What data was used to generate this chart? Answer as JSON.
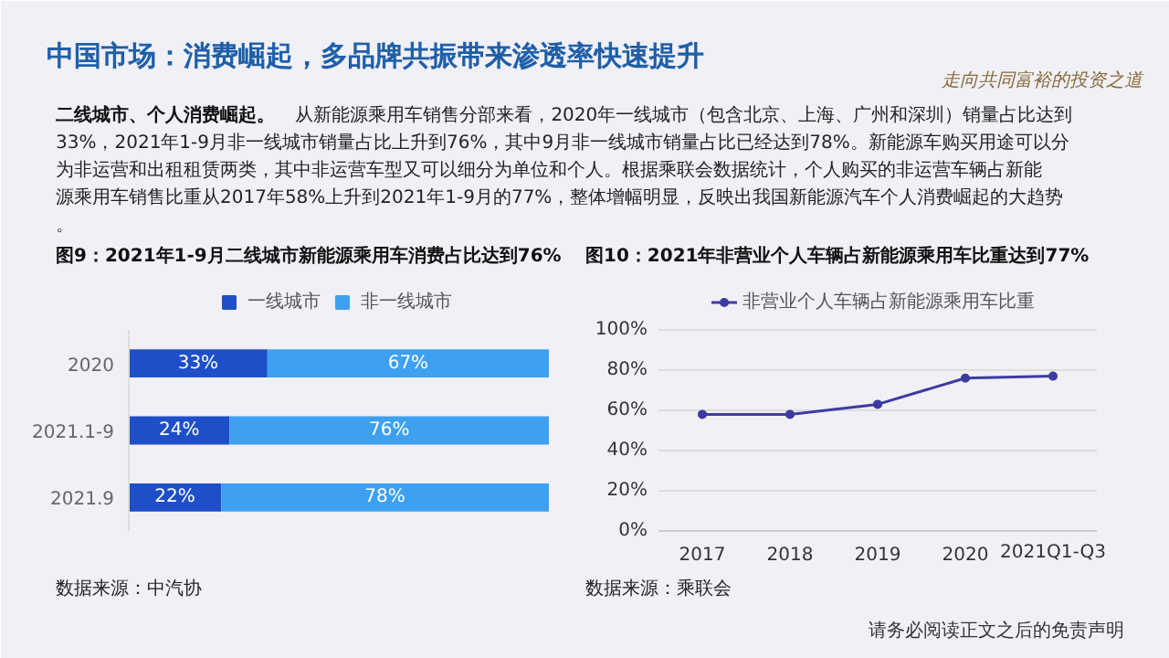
{
  "chart_data": [
    {
      "type": "other",
      "title": "中国市场：消费崛起，多品牌共振带来渗透率快速提升",
      "subtitle": "二线城市、个人消费崛起。",
      "annotations": [
        "从新能源乘用车销售分部来看，2020年一线城市（包含北京、上海、广州和深圳）销量占比达到33%，2021年1-9月非一线城市销量占比上升到76%，其中9月非一线城市销量占比已经达到78%。新能源车购买用途可以分为非运营和出租租赁两类，其中非运营车型又可以细分为单位和个人。根据乘联会数据统计，个人购买的非运营车辆占新能源乘用车销售比重从2017年58%上升到2021年1-9月的77%，整体增幅明显，反映出我国新能源汽车个人消费崛起的大趋势。",
        "走向共同富裕的投资之道",
        "请务必阅读正文之后的免责声明"
      ]
    },
    {
      "type": "bar",
      "orientation": "horizontal",
      "stacked": true,
      "title": "图9：2021年1-9月二线城市新能源乘用车消费占比达到76%",
      "categories": [
        "2020",
        "2021.1-9",
        "2021.9"
      ],
      "series": [
        {
          "name": "一线城市",
          "color": "#1f4fc8",
          "values": [
            33,
            24,
            22
          ],
          "value_labels": [
            "33%",
            "24%",
            "22%"
          ]
        },
        {
          "name": "非一线城市",
          "color": "#3ea0f0",
          "values": [
            67,
            76,
            78
          ],
          "value_labels": [
            "67%",
            "76%",
            "78%"
          ]
        }
      ],
      "legend": "top",
      "annotations": [
        "数据来源：中汽协"
      ]
    },
    {
      "type": "line",
      "title": "图10：2021年非营业个人车辆占新能源乘用车比重达到77%",
      "categories": [
        "2017",
        "2018",
        "2019",
        "2020",
        "2021Q1-Q3"
      ],
      "series": [
        {
          "name": "非营业个人车辆占新能源乘用车比重",
          "color": "#3c3ca0",
          "values": [
            58,
            58,
            63,
            76,
            77
          ]
        }
      ],
      "ylim": [
        0,
        100
      ],
      "yticks": [
        {
          "value": 0,
          "label": "0%"
        },
        {
          "value": 20,
          "label": "20%"
        },
        {
          "value": 40,
          "label": "40%"
        },
        {
          "value": 60,
          "label": "60%"
        },
        {
          "value": 80,
          "label": "80%"
        },
        {
          "value": 100,
          "label": "100%"
        }
      ],
      "grid": "y",
      "marker": "circle",
      "line_style": "solid",
      "legend": "top",
      "annotations": [
        "数据来源：乘联会"
      ]
    }
  ]
}
